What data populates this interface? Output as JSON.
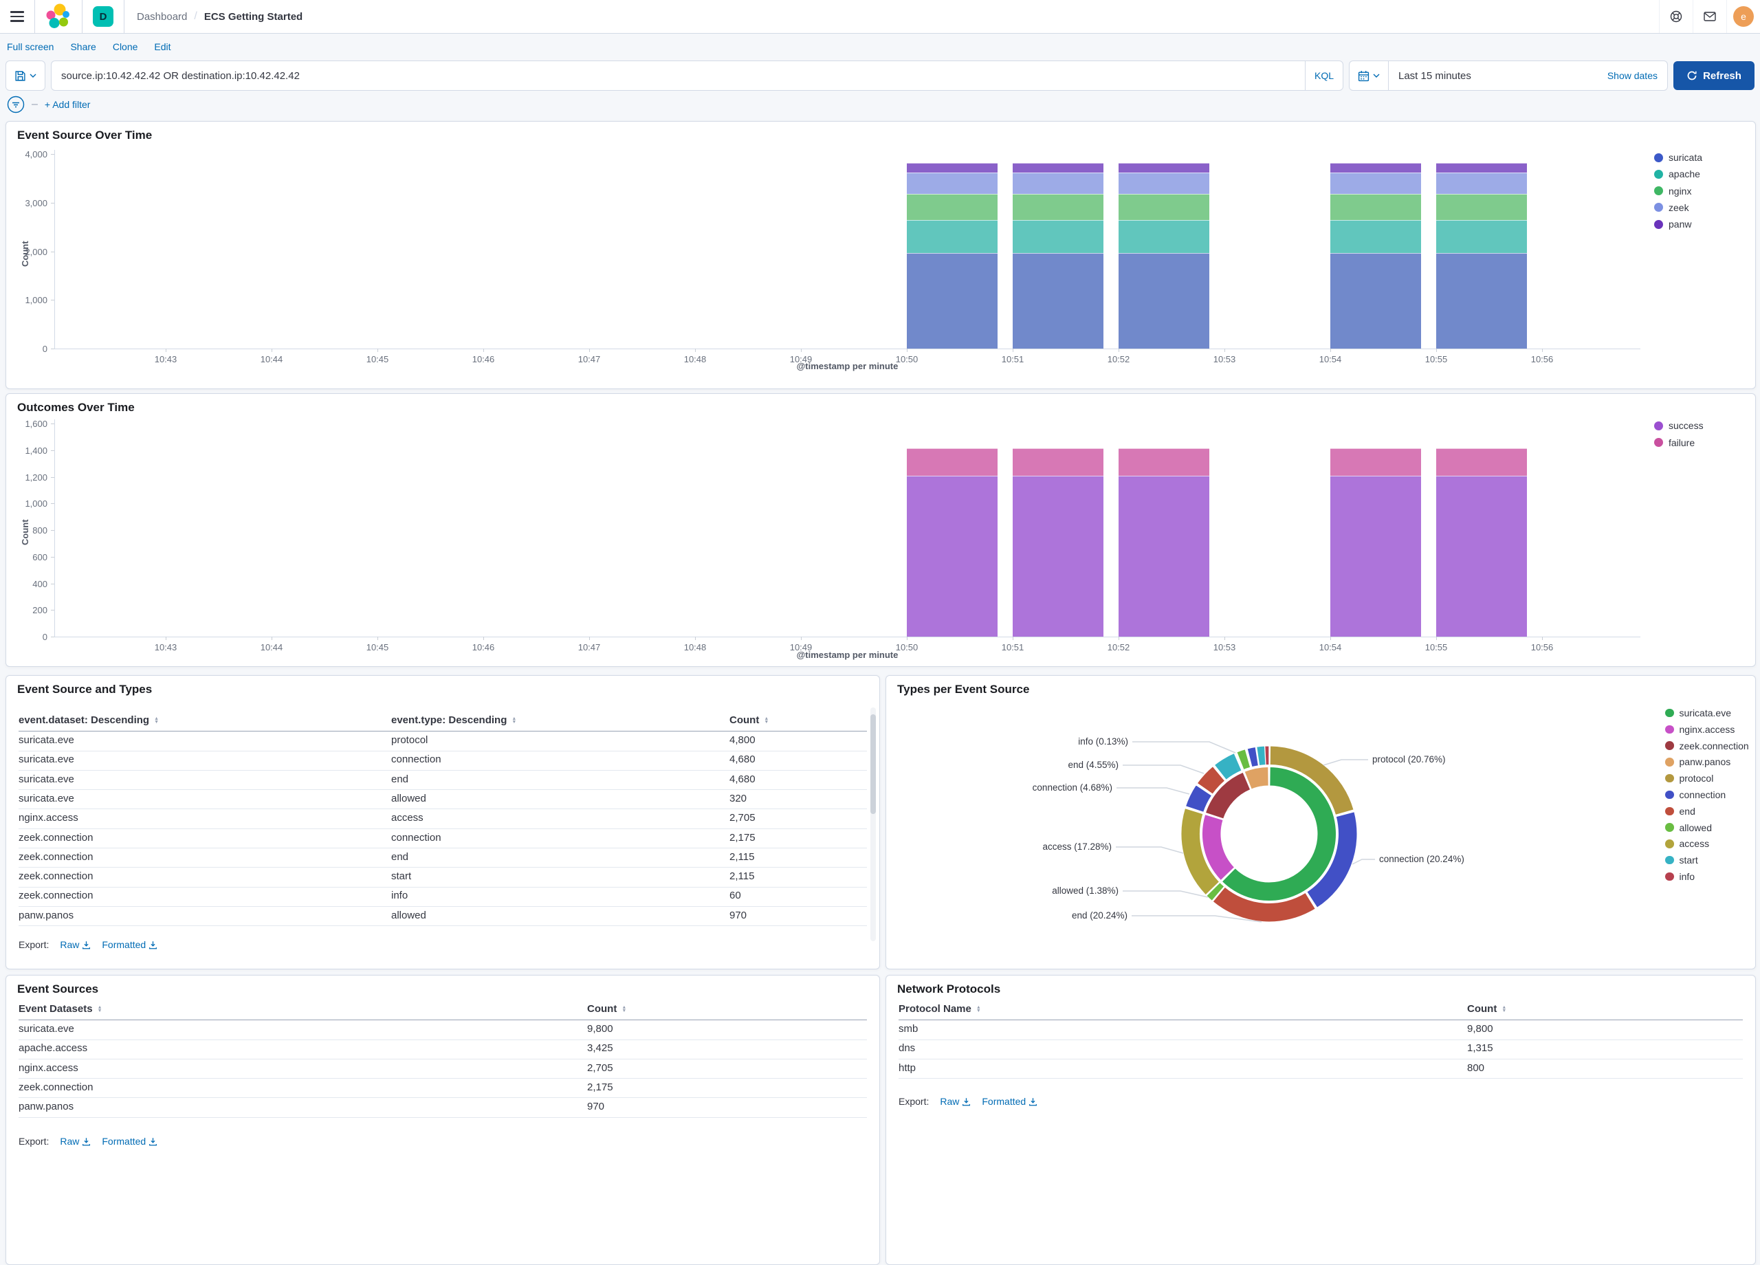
{
  "app": {
    "breadcrumb_section": "Dashboard",
    "breadcrumb_separator": "/",
    "breadcrumb_page": "ECS Getting Started",
    "space_badge": "D",
    "avatar_initial": "e"
  },
  "toolbar": {
    "links": [
      "Full screen",
      "Share",
      "Clone",
      "Edit"
    ]
  },
  "query_bar": {
    "query": "source.ip:10.42.42.42 OR destination.ip:10.42.42.42",
    "language": "KQL",
    "time_range": "Last 15 minutes",
    "show_dates_label": "Show dates",
    "refresh_label": "Refresh",
    "add_filter_label": "+ Add filter",
    "filter_dash": "–"
  },
  "export": {
    "label": "Export:",
    "raw": "Raw",
    "formatted": "Formatted"
  },
  "colors": {
    "link_blue": "#006BB4",
    "refresh_button": "#1656A8",
    "space_badge_teal": "#00BFB3",
    "avatar_orange": "#ED9E57",
    "panel_border": "#D3DAE6",
    "page_background": "#F5F7FA"
  },
  "chart_data": [
    {
      "type": "bar",
      "title": "Event Source Over Time",
      "stacked": true,
      "ylabel": "Count",
      "xlabel": "@timestamp per minute",
      "ylim": [
        0,
        4000
      ],
      "yticks": [
        0,
        1000,
        2000,
        3000,
        4000
      ],
      "x_ticks": [
        "10:43",
        "10:44",
        "10:45",
        "10:46",
        "10:47",
        "10:48",
        "10:49",
        "10:50",
        "10:51",
        "10:52",
        "10:53",
        "10:54",
        "10:55",
        "10:56"
      ],
      "bar_x": [
        "10:50",
        "10:51",
        "10:52",
        "10:54",
        "10:55"
      ],
      "legend_position": "right",
      "grid": false,
      "series": [
        {
          "name": "suricata",
          "color": "#3C59C8",
          "bar_color": "#7189CB",
          "values": [
            1960,
            1960,
            1960,
            1960,
            1960
          ]
        },
        {
          "name": "apache",
          "color": "#21B3A4",
          "bar_color": "#61C6BD",
          "values": [
            685,
            685,
            685,
            685,
            685
          ]
        },
        {
          "name": "nginx",
          "color": "#3FB764",
          "bar_color": "#7FCB8D",
          "values": [
            540,
            540,
            540,
            540,
            540
          ]
        },
        {
          "name": "zeek",
          "color": "#7C90E2",
          "bar_color": "#9DABE7",
          "values": [
            435,
            435,
            435,
            435,
            435
          ]
        },
        {
          "name": "panw",
          "color": "#6A33BB",
          "bar_color": "#8A61C9",
          "values": [
            195,
            195,
            195,
            195,
            195
          ]
        }
      ]
    },
    {
      "type": "bar",
      "title": "Outcomes Over Time",
      "stacked": true,
      "ylabel": "Count",
      "xlabel": "@timestamp per minute",
      "ylim": [
        0,
        1600
      ],
      "yticks": [
        0,
        200,
        400,
        600,
        800,
        1000,
        1200,
        1400,
        1600
      ],
      "x_ticks": [
        "10:43",
        "10:44",
        "10:45",
        "10:46",
        "10:47",
        "10:48",
        "10:49",
        "10:50",
        "10:51",
        "10:52",
        "10:53",
        "10:54",
        "10:55",
        "10:56"
      ],
      "bar_x": [
        "10:50",
        "10:51",
        "10:52",
        "10:54",
        "10:55"
      ],
      "legend_position": "right",
      "grid": false,
      "series": [
        {
          "name": "success",
          "color": "#9B4FD0",
          "bar_color": "#AD74DA",
          "values": [
            1210,
            1210,
            1210,
            1210,
            1210
          ]
        },
        {
          "name": "failure",
          "color": "#C9509F",
          "bar_color": "#D778B5",
          "values": [
            205,
            205,
            205,
            205,
            205
          ]
        }
      ]
    },
    {
      "type": "pie",
      "title": "Types per Event Source",
      "subtype": "sunburst-donut",
      "inner_ring": [
        {
          "label": "suricata.eve",
          "pct": 62.62,
          "color": "#2FAB54"
        },
        {
          "label": "nginx.access",
          "pct": 17.28,
          "color": "#C750C7"
        },
        {
          "label": "zeek.connection",
          "pct": 13.91,
          "color": "#9E3A41"
        },
        {
          "label": "panw.panos",
          "pct": 6.19,
          "color": "#DFA263"
        }
      ],
      "outer_ring": [
        {
          "label": "protocol",
          "pct": 20.76,
          "color": "#B3983F"
        },
        {
          "label": "connection",
          "pct": 20.24,
          "color": "#4150C6"
        },
        {
          "label": "end",
          "pct": 20.24,
          "color": "#BF4E3C"
        },
        {
          "label": "allowed",
          "pct": 1.38,
          "color": "#69BD42"
        },
        {
          "label": "access",
          "pct": 17.28,
          "color": "#B2A43C"
        },
        {
          "label": "connection",
          "pct": 4.68,
          "color": "#4150C6"
        },
        {
          "label": "end",
          "pct": 4.55,
          "color": "#BF4E3C"
        },
        {
          "label": "start",
          "pct": 4.55,
          "color": "#36B2C4"
        },
        {
          "label": "info",
          "pct": 0.13,
          "color": "#B6404E"
        },
        {
          "label": "allowed",
          "pct": 2.0,
          "color": "#69BD42"
        },
        {
          "label": "connection",
          "pct": 1.9,
          "color": "#4150C6"
        },
        {
          "label": "start",
          "pct": 1.5,
          "color": "#36B2C4"
        },
        {
          "label": "info",
          "pct": 0.79,
          "color": "#B6404E"
        }
      ],
      "callouts": [
        "info (0.13%)",
        "end (4.55%)",
        "connection (4.68%)",
        "access (17.28%)",
        "allowed (1.38%)",
        "end (20.24%)",
        "connection (20.24%)",
        "protocol (20.76%)"
      ],
      "legend": [
        {
          "label": "suricata.eve",
          "color": "#2FAB54"
        },
        {
          "label": "nginx.access",
          "color": "#C750C7"
        },
        {
          "label": "zeek.connection",
          "color": "#9E3A41"
        },
        {
          "label": "panw.panos",
          "color": "#DFA263"
        },
        {
          "label": "protocol",
          "color": "#B3983F"
        },
        {
          "label": "connection",
          "color": "#4150C6"
        },
        {
          "label": "end",
          "color": "#BF4E3C"
        },
        {
          "label": "allowed",
          "color": "#69BD42"
        },
        {
          "label": "access",
          "color": "#B2A43C"
        },
        {
          "label": "start",
          "color": "#36B2C4"
        },
        {
          "label": "info",
          "color": "#B6404E"
        }
      ]
    },
    {
      "type": "table",
      "title": "Event Source and Types",
      "headers": [
        "event.dataset: Descending",
        "event.type: Descending",
        "Count"
      ],
      "rows": [
        [
          "suricata.eve",
          "protocol",
          "4,800"
        ],
        [
          "suricata.eve",
          "connection",
          "4,680"
        ],
        [
          "suricata.eve",
          "end",
          "4,680"
        ],
        [
          "suricata.eve",
          "allowed",
          "320"
        ],
        [
          "nginx.access",
          "access",
          "2,705"
        ],
        [
          "zeek.connection",
          "connection",
          "2,175"
        ],
        [
          "zeek.connection",
          "end",
          "2,115"
        ],
        [
          "zeek.connection",
          "start",
          "2,115"
        ],
        [
          "zeek.connection",
          "info",
          "60"
        ],
        [
          "panw.panos",
          "allowed",
          "970"
        ]
      ]
    },
    {
      "type": "table",
      "title": "Event Sources",
      "headers": [
        "Event Datasets",
        "Count"
      ],
      "rows": [
        [
          "suricata.eve",
          "9,800"
        ],
        [
          "apache.access",
          "3,425"
        ],
        [
          "nginx.access",
          "2,705"
        ],
        [
          "zeek.connection",
          "2,175"
        ],
        [
          "panw.panos",
          "970"
        ]
      ]
    },
    {
      "type": "table",
      "title": "Network Protocols",
      "headers": [
        "Protocol Name",
        "Count"
      ],
      "rows": [
        [
          "smb",
          "9,800"
        ],
        [
          "dns",
          "1,315"
        ],
        [
          "http",
          "800"
        ]
      ]
    }
  ]
}
